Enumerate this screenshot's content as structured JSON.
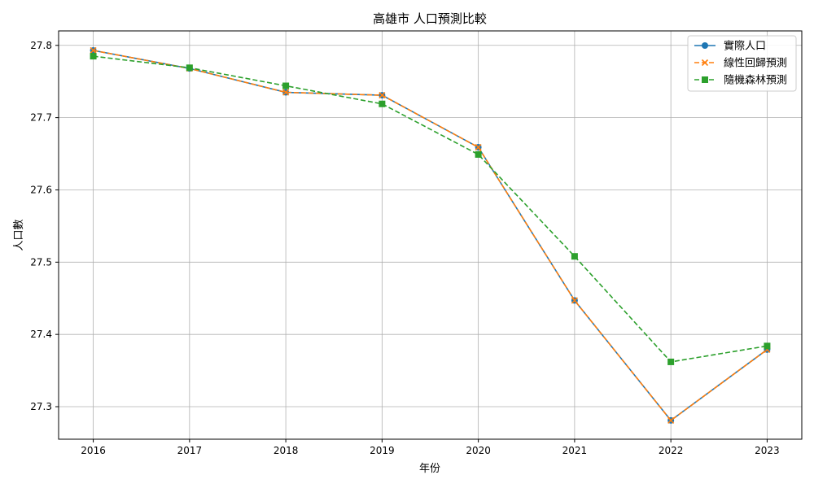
{
  "chart_data": {
    "type": "line",
    "title": "高雄市 人口預測比較",
    "xlabel": "年份",
    "ylabel": "人口數",
    "x": [
      2016,
      2017,
      2018,
      2019,
      2020,
      2021,
      2022,
      2023
    ],
    "xlim": [
      2015.64,
      2023.36
    ],
    "ylim": [
      27.255,
      27.82
    ],
    "yticks": [
      27.3,
      27.4,
      27.5,
      27.6,
      27.7,
      27.8
    ],
    "grid": true,
    "legend_position": "top-right",
    "series": [
      {
        "name": "實際人口",
        "values": [
          27.793,
          27.768,
          27.735,
          27.731,
          27.659,
          27.447,
          27.281,
          27.379
        ],
        "color": "#1f77b4",
        "line_style": "solid",
        "marker": "circle"
      },
      {
        "name": "線性回歸預測",
        "values": [
          27.793,
          27.768,
          27.735,
          27.731,
          27.659,
          27.447,
          27.281,
          27.379
        ],
        "color": "#ff7f0e",
        "line_style": "dashed",
        "marker": "x"
      },
      {
        "name": "隨機森林預測",
        "values": [
          27.785,
          27.769,
          27.744,
          27.719,
          27.649,
          27.508,
          27.362,
          27.384
        ],
        "color": "#2ca02c",
        "line_style": "dashed",
        "marker": "square"
      }
    ]
  }
}
